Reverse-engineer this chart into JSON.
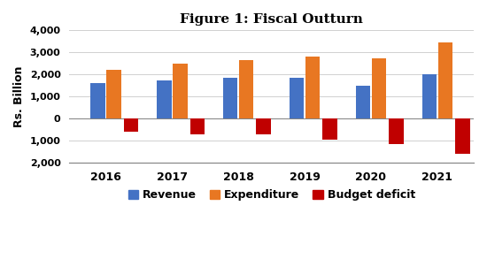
{
  "title": "Figure 1: Fiscal Outturn",
  "years": [
    2016,
    2017,
    2018,
    2019,
    2020,
    2021
  ],
  "revenue": [
    1600,
    1750,
    1850,
    1850,
    1500,
    2000
  ],
  "expenditure": [
    2200,
    2500,
    2650,
    2800,
    2750,
    3450
  ],
  "budget_deficit": [
    -600,
    -700,
    -700,
    -950,
    -1150,
    -1600
  ],
  "revenue_color": "#4472C4",
  "expenditure_color": "#E87722",
  "deficit_color": "#C00000",
  "ylabel": "Rs. Billion",
  "ylim": [
    -2000,
    4000
  ],
  "yticks": [
    -2000,
    -1000,
    0,
    1000,
    2000,
    3000,
    4000
  ],
  "ytick_labels": [
    "2,000",
    "1,000",
    "0",
    "1,000",
    "2,000",
    "3,000",
    "4,000"
  ],
  "background_color": "#FFFFFF",
  "title_fontsize": 11,
  "axis_fontsize": 8,
  "legend_labels": [
    "Revenue",
    "Expenditure",
    "Budget deficit"
  ]
}
